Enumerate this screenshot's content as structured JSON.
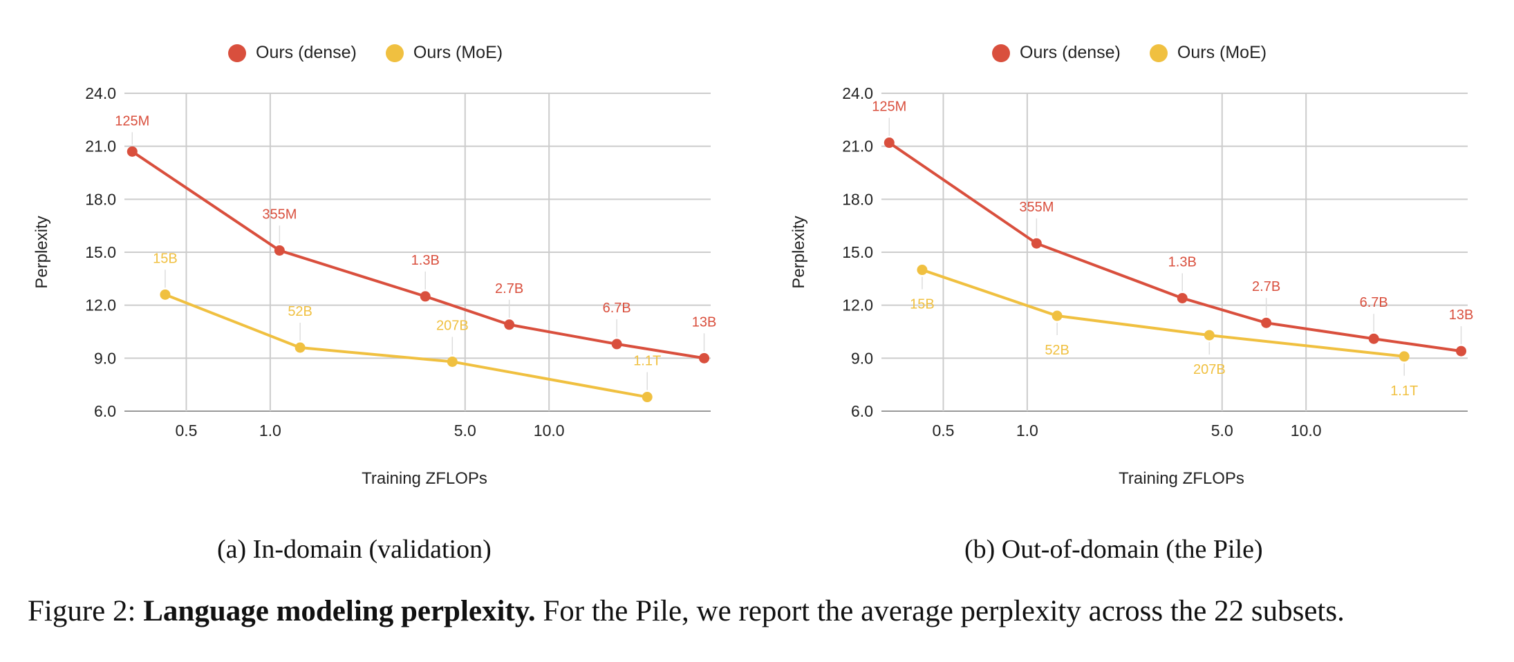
{
  "caption": {
    "label": "Figure 2:",
    "bold": "Language modeling perplexity.",
    "rest": "For the Pile, we report the average perplexity across the 22 subsets."
  },
  "colors": {
    "dense": "#d94f3d",
    "moe": "#f0c040",
    "grid": "#cccccc",
    "axis": "#999999"
  },
  "chart_data": [
    {
      "type": "line",
      "subcaption": "(a) In-domain (validation)",
      "xlabel": "Training ZFLOPs",
      "ylabel": "Perplexity",
      "x_scale": "log",
      "xlim": [
        0.3,
        38
      ],
      "ylim": [
        6.0,
        24.0
      ],
      "x_ticks": [
        "0.5",
        "1.0",
        "5.0",
        "10.0"
      ],
      "y_ticks": [
        "6.0",
        "9.0",
        "12.0",
        "15.0",
        "18.0",
        "21.0",
        "24.0"
      ],
      "legend_position": "top",
      "grid": true,
      "series": [
        {
          "name": "Ours (dense)",
          "key": "dense",
          "x": [
            0.32,
            1.08,
            3.6,
            7.2,
            17.5,
            36
          ],
          "y": [
            20.7,
            15.1,
            12.5,
            10.9,
            9.8,
            9.0
          ],
          "point_labels": [
            "125M",
            "355M",
            "1.3B",
            "2.7B",
            "6.7B",
            "13B"
          ]
        },
        {
          "name": "Ours (MoE)",
          "key": "moe",
          "x": [
            0.42,
            1.28,
            4.5,
            22.5
          ],
          "y": [
            12.6,
            9.6,
            8.8,
            6.8
          ],
          "point_labels": [
            "15B",
            "52B",
            "207B",
            "1.1T"
          ]
        }
      ]
    },
    {
      "type": "line",
      "subcaption": "(b) Out-of-domain (the Pile)",
      "xlabel": "Training ZFLOPs",
      "ylabel": "Perplexity",
      "x_scale": "log",
      "xlim": [
        0.3,
        38
      ],
      "ylim": [
        6.0,
        24.0
      ],
      "x_ticks": [
        "0.5",
        "1.0",
        "5.0",
        "10.0"
      ],
      "y_ticks": [
        "6.0",
        "9.0",
        "12.0",
        "15.0",
        "18.0",
        "21.0",
        "24.0"
      ],
      "legend_position": "top",
      "grid": true,
      "series": [
        {
          "name": "Ours (dense)",
          "key": "dense",
          "x": [
            0.32,
            1.08,
            3.6,
            7.2,
            17.5,
            36
          ],
          "y": [
            21.2,
            15.5,
            12.4,
            11.0,
            10.1,
            9.4
          ],
          "point_labels": [
            "125M",
            "355M",
            "1.3B",
            "2.7B",
            "6.7B",
            "13B"
          ]
        },
        {
          "name": "Ours (MoE)",
          "key": "moe",
          "x": [
            0.42,
            1.28,
            4.5,
            22.5
          ],
          "y": [
            14.0,
            11.4,
            10.3,
            9.1
          ],
          "point_labels": [
            "15B",
            "52B",
            "207B",
            "1.1T"
          ]
        }
      ]
    }
  ]
}
